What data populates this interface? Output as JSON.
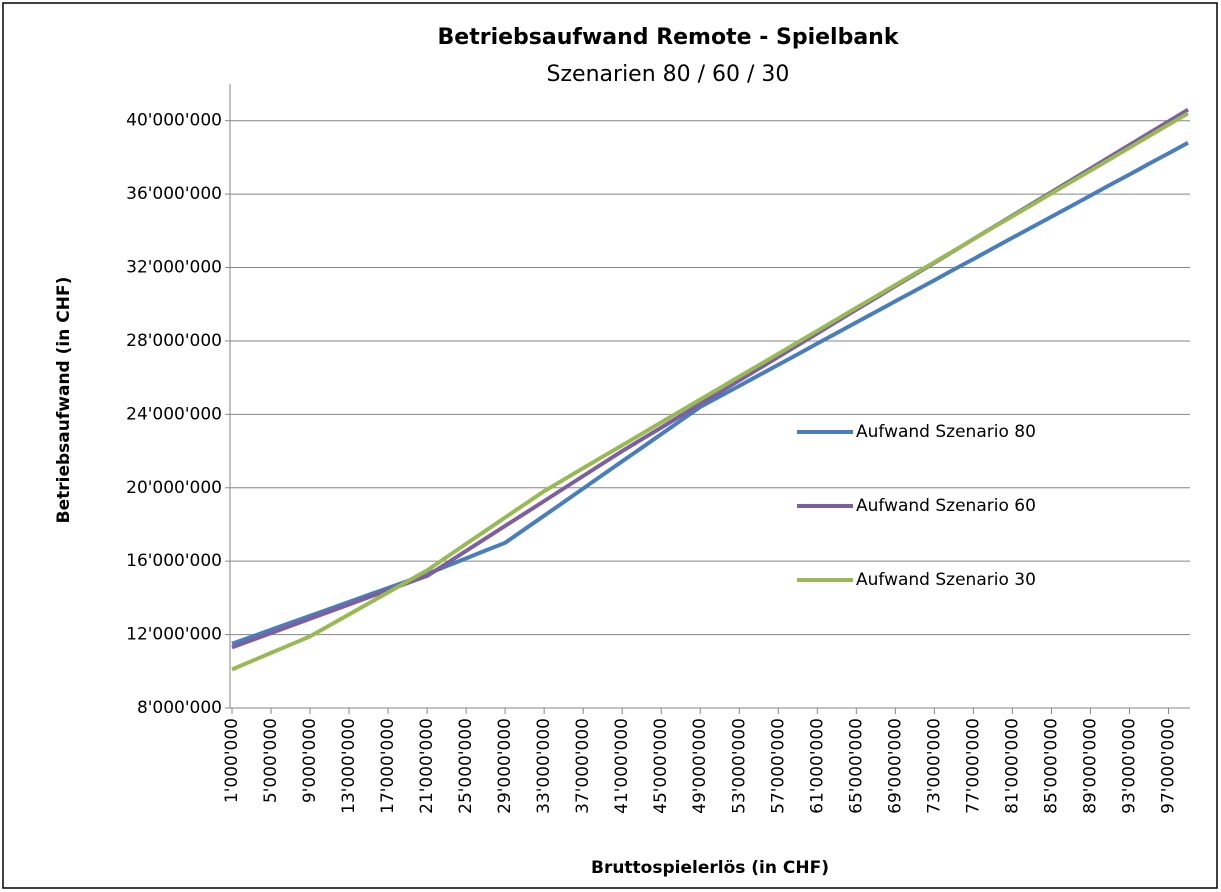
{
  "chart_data": {
    "type": "line",
    "title": "Betriebsaufwand Remote - Spielbank",
    "subtitle": "Szenarien 80 / 60 / 30",
    "x_label": "Bruttospielerlös (in CHF)",
    "y_label": "Betriebsaufwand  (in CHF)",
    "categories": [
      "1'000'000",
      null,
      "5'000'000",
      null,
      "9'000'000",
      null,
      "13'000'000",
      null,
      "17'000'000",
      null,
      "21'000'000",
      null,
      "25'000'000",
      null,
      "29'000'000",
      null,
      "33'000'000",
      null,
      "37'000'000",
      null,
      "41'000'000",
      null,
      "45'000'000",
      null,
      "49'000'000",
      null,
      "53'000'000",
      null,
      "57'000'000",
      null,
      "61'000'000",
      null,
      "65'000'000",
      null,
      "69'000'000",
      null,
      "73'000'000",
      null,
      "77'000'000",
      null,
      "81'000'000",
      null,
      "85'000'000",
      null,
      "89'000'000",
      null,
      "93'000'000",
      null,
      "97'000'000",
      null
    ],
    "series": [
      {
        "name": "Aufwand Szenario 80",
        "color": "#4a7ebb",
        "values": [
          11500000,
          11880000,
          12260000,
          12640000,
          13020000,
          13400000,
          13780000,
          14160000,
          14540000,
          14920000,
          15300000,
          15730000,
          16150000,
          16580000,
          17000000,
          17740000,
          18480000,
          19220000,
          19960000,
          20700000,
          21440000,
          22180000,
          22920000,
          23660000,
          24400000,
          24980000,
          25550000,
          26130000,
          26700000,
          27280000,
          27860000,
          28430000,
          29010000,
          29580000,
          30160000,
          30740000,
          31310000,
          31890000,
          32460000,
          33040000,
          33620000,
          34190000,
          34770000,
          35340000,
          35920000,
          36500000,
          37070000,
          37650000,
          38220000,
          38800000
        ]
      },
      {
        "name": "Aufwand Szenario 60",
        "color": "#7d5fa0",
        "values": [
          11300000,
          11690000,
          12080000,
          12470000,
          12860000,
          13250000,
          13640000,
          14030000,
          14420000,
          14810000,
          15200000,
          15880000,
          16560000,
          17240000,
          17920000,
          18600000,
          19280000,
          19960000,
          20640000,
          21320000,
          22000000,
          22640000,
          23280000,
          23920000,
          24570000,
          25210000,
          25850000,
          26490000,
          27130000,
          27770000,
          28410000,
          29060000,
          29700000,
          30340000,
          30980000,
          31620000,
          32260000,
          32900000,
          33550000,
          34190000,
          34830000,
          35470000,
          36110000,
          36750000,
          37390000,
          38040000,
          38680000,
          39320000,
          39960000,
          40600000
        ]
      },
      {
        "name": "Aufwand Szenario 30",
        "color": "#98b954",
        "values": [
          10100000,
          10550000,
          11000000,
          11450000,
          11900000,
          12500000,
          13100000,
          13700000,
          14300000,
          14900000,
          15500000,
          16220000,
          16940000,
          17660000,
          18380000,
          19100000,
          19820000,
          20440000,
          21070000,
          21690000,
          22310000,
          22940000,
          23560000,
          24180000,
          24810000,
          25430000,
          26060000,
          26680000,
          27300000,
          27930000,
          28550000,
          29180000,
          29800000,
          30420000,
          31050000,
          31670000,
          32290000,
          32920000,
          33540000,
          34170000,
          34790000,
          35410000,
          36040000,
          36660000,
          37280000,
          37910000,
          38530000,
          39160000,
          39780000,
          40400000
        ]
      }
    ],
    "ylim": [
      8000000,
      42000000
    ],
    "yticks": [
      {
        "value": 8000000,
        "label": "8'000'000"
      },
      {
        "value": 12000000,
        "label": "12'000'000"
      },
      {
        "value": 16000000,
        "label": "16'000'000"
      },
      {
        "value": 20000000,
        "label": "20'000'000"
      },
      {
        "value": 24000000,
        "label": "24'000'000"
      },
      {
        "value": 28000000,
        "label": "28'000'000"
      },
      {
        "value": 32000000,
        "label": "32'000'000"
      },
      {
        "value": 36000000,
        "label": "36'000'000"
      },
      {
        "value": 40000000,
        "label": "40'000'000"
      }
    ],
    "grid": true,
    "legend": "right"
  }
}
